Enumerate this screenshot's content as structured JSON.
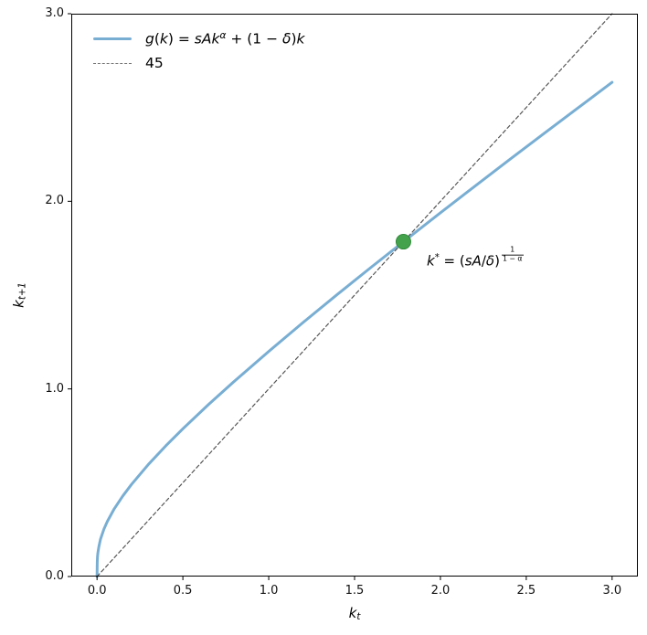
{
  "chart_data": {
    "type": "line",
    "title": "",
    "xlabel": "k_t",
    "xlabel_parts": [
      {
        "t": "k",
        "i": true
      },
      {
        "t": "t",
        "sub": true,
        "i": true
      }
    ],
    "ylabel": "k_{t+1}",
    "ylabel_parts": [
      {
        "t": "k",
        "i": true
      },
      {
        "t": "t+1",
        "sub": true,
        "i": true
      }
    ],
    "xlim": [
      -0.15,
      3.15
    ],
    "ylim": [
      0,
      3
    ],
    "xticks": [
      0.0,
      0.5,
      1.0,
      1.5,
      2.0,
      2.5,
      3.0
    ],
    "xtick_labels": [
      "0.0",
      "0.5",
      "1.0",
      "1.5",
      "2.0",
      "2.5",
      "3.0"
    ],
    "yticks": [
      0.0,
      1.0,
      2.0,
      3.0
    ],
    "ytick_labels": [
      "0.0",
      "1.0",
      "2.0",
      "3.0"
    ],
    "grid": false,
    "legend_position": "upper left",
    "frame_color": "#000000",
    "series": [
      {
        "name": "g(k) = sAk^α + (1 − δ)k",
        "style": "solid",
        "color": "#79aed3",
        "width": 3,
        "x": [
          0,
          0.001,
          0.003,
          0.005,
          0.01,
          0.02,
          0.04,
          0.06,
          0.1,
          0.15,
          0.2,
          0.3,
          0.4,
          0.5,
          0.65,
          0.8,
          1.0,
          1.2,
          1.4,
          1.6,
          1.8,
          2.0,
          2.2,
          2.4,
          2.6,
          2.8,
          3.0
        ],
        "y": [
          0,
          0.0762,
          0.1069,
          0.1255,
          0.1567,
          0.1975,
          0.2524,
          0.294,
          0.3607,
          0.4296,
          0.4902,
          0.5981,
          0.6958,
          0.7874,
          0.9173,
          1.0411,
          1.2,
          1.3537,
          1.5037,
          1.6509,
          1.7957,
          1.9387,
          2.0801,
          2.2202,
          2.3592,
          2.4971,
          2.6343
        ],
        "label_parts": [
          {
            "t": "g",
            "i": true
          },
          {
            "t": "("
          },
          {
            "t": "k",
            "i": true
          },
          {
            "t": ") = "
          },
          {
            "t": "sAk",
            "i": true
          },
          {
            "t": "α",
            "i": true,
            "sup": true
          },
          {
            "t": " + (1 − "
          },
          {
            "t": "δ",
            "i": true
          },
          {
            "t": ")"
          },
          {
            "t": "k",
            "i": true
          }
        ]
      },
      {
        "name": "45",
        "style": "dashed",
        "color": "#565656",
        "legend_swatch_color": "#787878",
        "width": 1.2,
        "dash": "4 3",
        "x": [
          0,
          3
        ],
        "y": [
          0,
          3
        ],
        "label_parts": [
          {
            "t": "45"
          }
        ]
      }
    ],
    "fixed_point": {
      "x": 1.7846,
      "y": 1.7846,
      "radius": 8,
      "color": "#44a24c",
      "edge_color": "#328a3b"
    },
    "annotation": {
      "text": "k* = (sA/δ)^(1/(1−α))",
      "x": 1.92,
      "y": 1.7,
      "parts": [
        {
          "t": "k",
          "i": true
        },
        {
          "t": "*",
          "sup": true
        },
        {
          "t": " = ("
        },
        {
          "t": "sA",
          "i": true
        },
        {
          "t": "/"
        },
        {
          "t": "δ",
          "i": true
        },
        {
          "t": ")"
        },
        {
          "frac": {
            "num": "1",
            "den": "1 − α"
          },
          "sup": true
        }
      ]
    }
  },
  "colors": {
    "background": "#ffffff",
    "curve_blue": "#79aed3",
    "dashed_gray": "#565656",
    "dot_green": "#44a24c",
    "tick_text": "#111111"
  }
}
